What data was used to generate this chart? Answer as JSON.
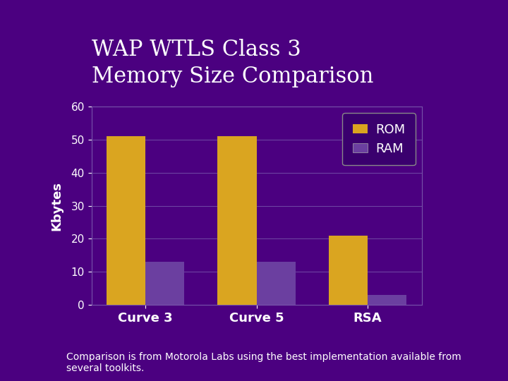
{
  "title": "WAP WTLS Class 3\nMemory Size Comparison",
  "categories": [
    "Curve 3",
    "Curve 5",
    "RSA"
  ],
  "rom_values": [
    51,
    51,
    21
  ],
  "ram_values": [
    13,
    13,
    3
  ],
  "rom_color": "#DAA520",
  "ram_color": "#6B3FA0",
  "ylabel": "Kbytes",
  "ylim": [
    0,
    60
  ],
  "yticks": [
    0,
    10,
    20,
    30,
    40,
    50,
    60
  ],
  "bg_color": "#4B0080",
  "chart_bg_color": "#4B0080",
  "text_color": "#FFFFFF",
  "legend_labels": [
    "ROM",
    "RAM"
  ],
  "legend_bg": "#3a006e",
  "legend_edge": "#888888",
  "footer_text": "Comparison is from Motorola Labs using the best implementation available from\nseveral toolkits.",
  "title_fontsize": 22,
  "axis_fontsize": 13,
  "tick_fontsize": 11,
  "legend_fontsize": 13,
  "footer_fontsize": 10,
  "bar_width": 0.35,
  "grid_color": "#7755AA"
}
